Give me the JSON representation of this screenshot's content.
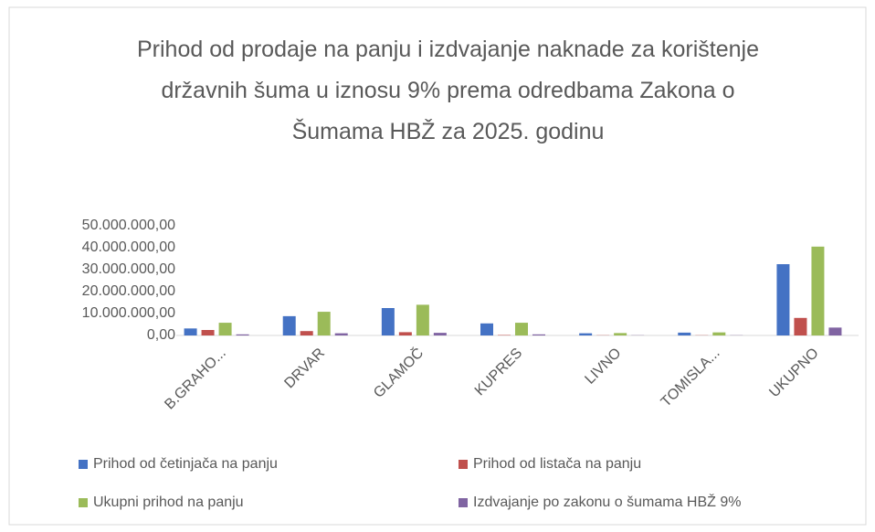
{
  "chart_data": {
    "type": "bar",
    "title": "Prihod od prodaje na panju i izdvajanje naknade za korištenje državnih šuma u iznosu 9% prema odredbama Zakona o Šumama HBŽ za 2025. godinu",
    "categories": [
      "B.GRAHO...",
      "DRVAR",
      "GLAMOČ",
      "KUPRES",
      "LIVNO",
      "TOMISLA...",
      "UKUPNO"
    ],
    "series": [
      {
        "name": "Prihod od četinjača na panju",
        "color": "#4472c4",
        "values": [
          3200000,
          8800000,
          12500000,
          5500000,
          1000000,
          1300000,
          32500000
        ]
      },
      {
        "name": "Prihod od listača na panju",
        "color": "#c0504d",
        "values": [
          2500000,
          2000000,
          1500000,
          200000,
          100000,
          100000,
          8000000
        ]
      },
      {
        "name": "Ukupni prihod na panju",
        "color": "#9bbb59",
        "values": [
          5800000,
          10800000,
          14000000,
          5800000,
          1100000,
          1400000,
          40500000
        ]
      },
      {
        "name": "Izdvajanje po zakonu o šumama HBŽ 9%",
        "color": "#8064a2",
        "values": [
          500000,
          1000000,
          1200000,
          500000,
          100000,
          100000,
          3600000
        ]
      }
    ],
    "ylim": [
      0,
      50000000
    ],
    "yticks": [
      {
        "value": 0,
        "label": "0,00"
      },
      {
        "value": 10000000,
        "label": "10.000.000,00"
      },
      {
        "value": 20000000,
        "label": "20.000.000,00"
      },
      {
        "value": 30000000,
        "label": "30.000.000,00"
      },
      {
        "value": 40000000,
        "label": "40.000.000,00"
      },
      {
        "value": 50000000,
        "label": "50.000.000,00"
      }
    ],
    "grid": false
  }
}
